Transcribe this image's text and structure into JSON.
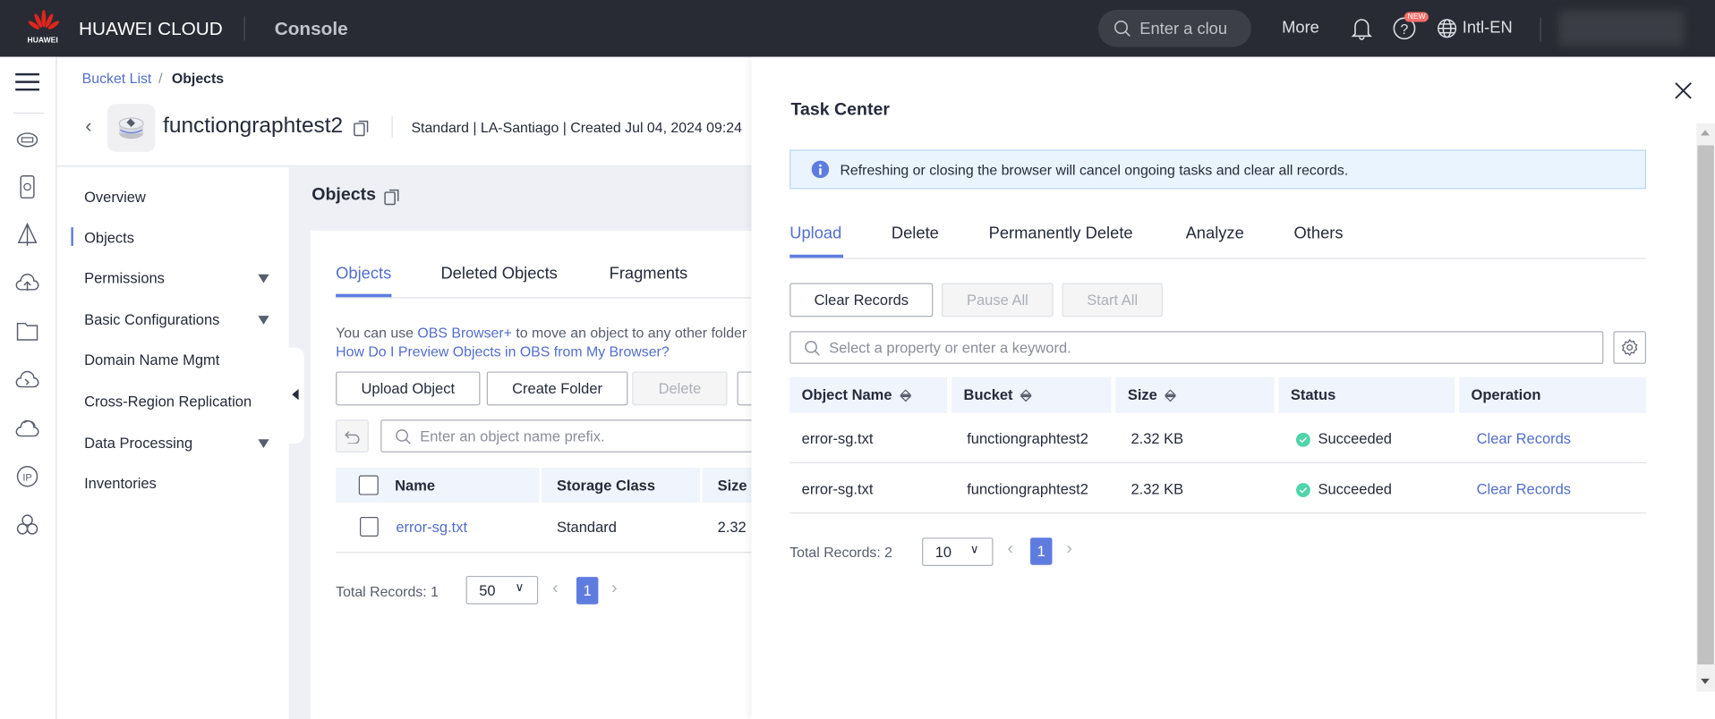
{
  "header": {
    "brand_sub": "HUAWEI",
    "brand": "HUAWEI CLOUD",
    "console": "Console",
    "search_placeholder": "Enter a clou",
    "more": "More",
    "new_badge": "NEW",
    "language": "Intl-EN"
  },
  "breadcrumb": {
    "parent": "Bucket List",
    "current": "Objects"
  },
  "bucket": {
    "name": "functiongraphtest2",
    "meta": "Standard | LA-Santiago | Created  Jul 04, 2024 09:24"
  },
  "left_nav": {
    "items": [
      {
        "label": "Overview"
      },
      {
        "label": "Objects",
        "active": true
      },
      {
        "label": "Permissions",
        "expandable": true
      },
      {
        "label": "Basic Configurations",
        "expandable": true
      },
      {
        "label": "Domain Name Mgmt"
      },
      {
        "label": "Cross-Region Replication"
      },
      {
        "label": "Data Processing",
        "expandable": true
      },
      {
        "label": "Inventories"
      }
    ]
  },
  "objects": {
    "title": "Objects",
    "tabs": [
      "Objects",
      "Deleted Objects",
      "Fragments"
    ],
    "hint_prefix": "You can use ",
    "hint_link": "OBS Browser+",
    "hint_suffix": " to move an object to any other folder",
    "hint_link2": "How Do I Preview Objects in OBS from My Browser?",
    "buttons": {
      "upload": "Upload Object",
      "create_folder": "Create Folder",
      "delete": "Delete"
    },
    "search_placeholder": "Enter an object name prefix.",
    "columns": [
      "Name",
      "Storage Class",
      "Size"
    ],
    "rows": [
      {
        "name": "error-sg.txt",
        "storage_class": "Standard",
        "size": "2.32"
      }
    ],
    "total": "Total Records: 1",
    "page_size": "50",
    "page": "1"
  },
  "task_center": {
    "title": "Task Center",
    "notice": "Refreshing or closing the browser will cancel ongoing tasks and clear all records.",
    "tabs": [
      "Upload",
      "Delete",
      "Permanently Delete",
      "Analyze",
      "Others"
    ],
    "active_tab": "Upload",
    "buttons": {
      "clear": "Clear Records",
      "pause": "Pause All",
      "start": "Start All"
    },
    "search_placeholder": "Select a property or enter a keyword.",
    "columns": [
      "Object Name",
      "Bucket",
      "Size",
      "Status",
      "Operation"
    ],
    "rows": [
      {
        "object": "error-sg.txt",
        "bucket": "functiongraphtest2",
        "size": "2.32 KB",
        "status": "Succeeded",
        "operation": "Clear Records"
      },
      {
        "object": "error-sg.txt",
        "bucket": "functiongraphtest2",
        "size": "2.32 KB",
        "status": "Succeeded",
        "operation": "Clear Records"
      }
    ],
    "total": "Total Records: 2",
    "page_size": "10",
    "page": "1"
  },
  "colors": {
    "header_bg": "#282b33",
    "accent": "#5e7ce0",
    "link": "#526ecc",
    "success": "#50d4ab",
    "badge": "#f66f6a"
  }
}
